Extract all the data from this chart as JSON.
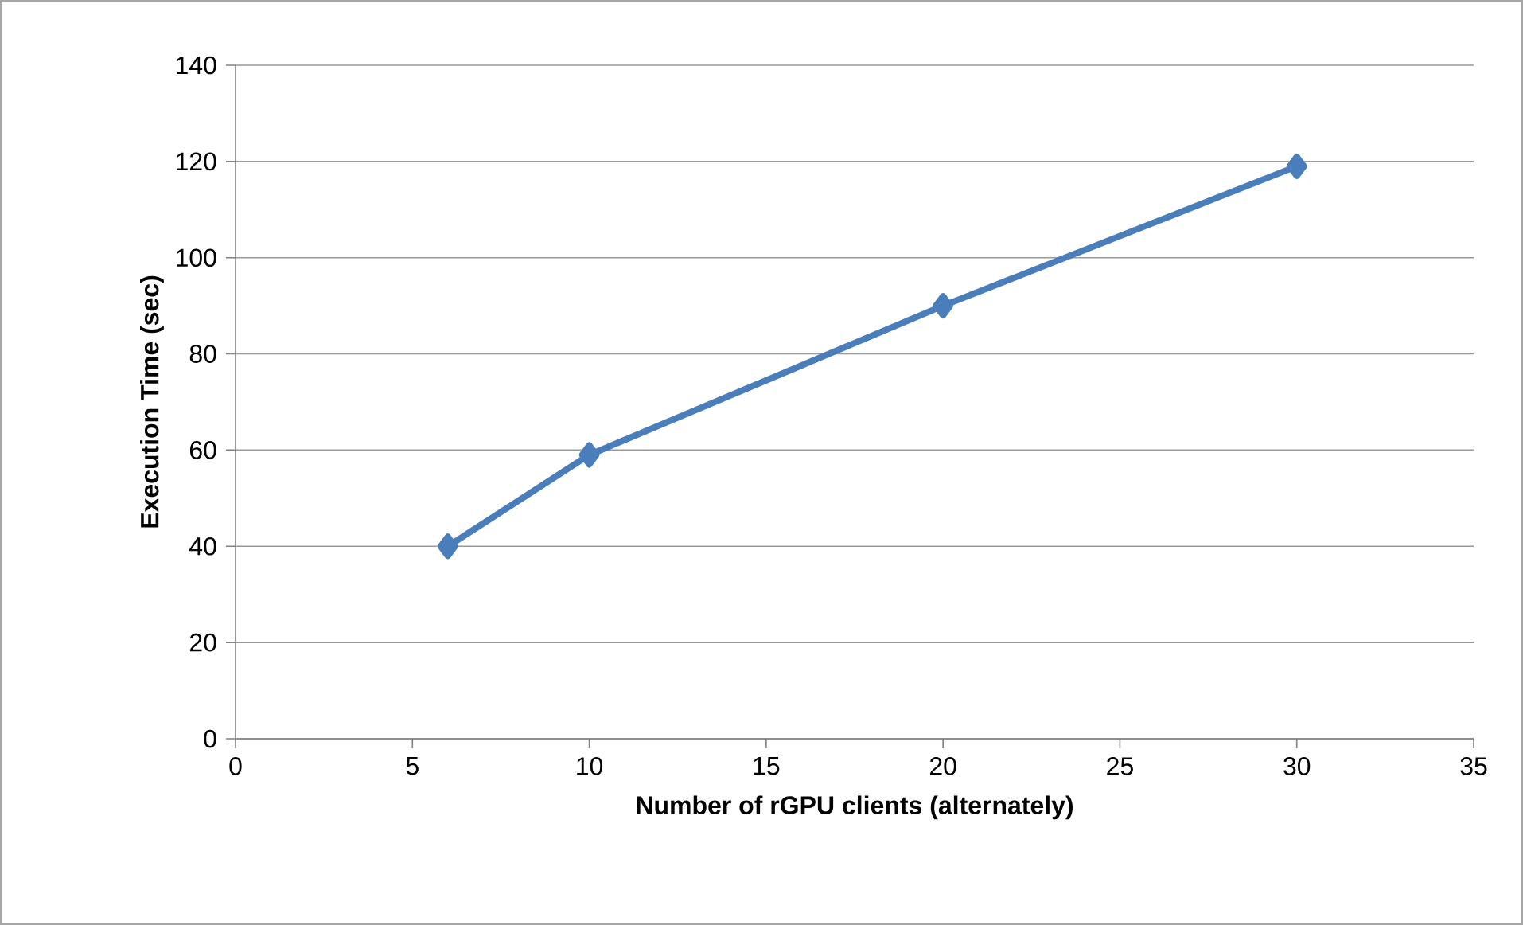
{
  "chart_data": {
    "type": "line",
    "xlabel": "Number of rGPU clients (alternately)",
    "ylabel": "Execution Time (sec)",
    "x": [
      6,
      10,
      20,
      30
    ],
    "series": [
      {
        "color": "#4a7ebb",
        "values": [
          40,
          59,
          90,
          119
        ]
      }
    ],
    "xlim": [
      0,
      35
    ],
    "xticks": [
      0,
      5,
      10,
      15,
      20,
      25,
      30,
      35
    ],
    "ylim": [
      0,
      140
    ],
    "yticks": [
      0,
      20,
      40,
      60,
      80,
      100,
      120,
      140
    ],
    "grid": "y",
    "marker": "diamond",
    "line_style": "solid"
  }
}
